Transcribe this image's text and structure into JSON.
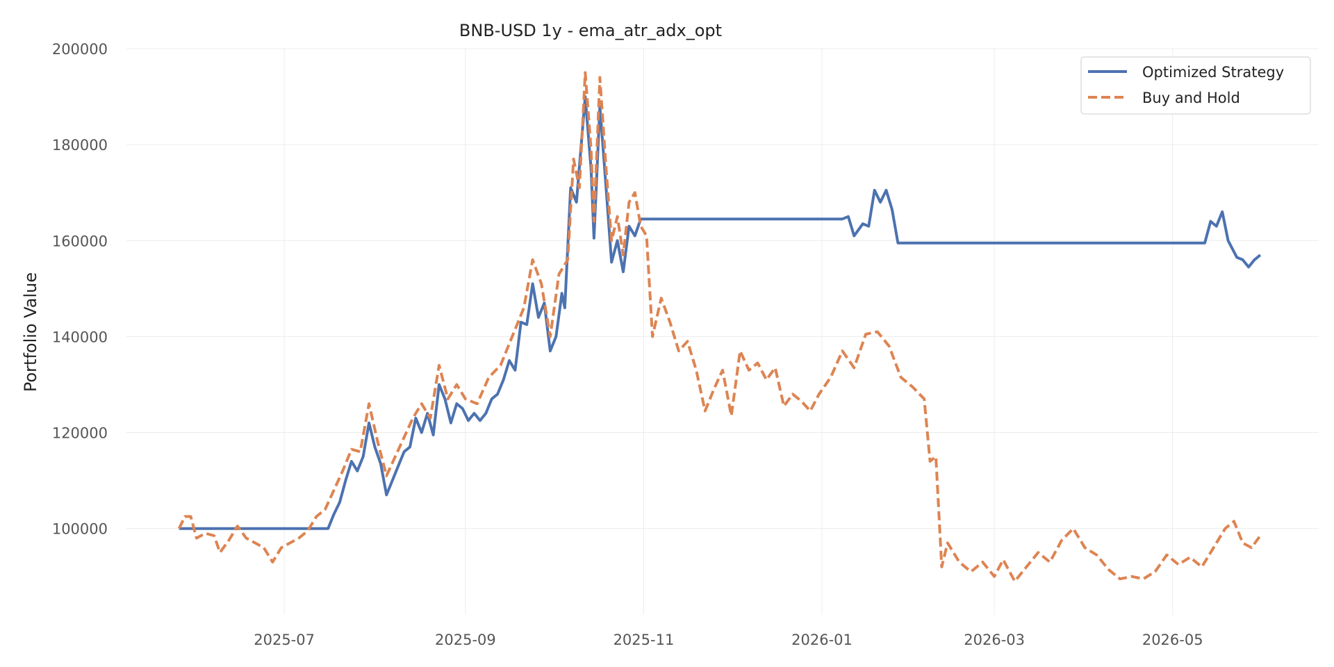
{
  "chart_data": {
    "type": "line",
    "title": "BNB-USD 1y - ema_atr_adx_opt",
    "xlabel": "",
    "ylabel": "Portfolio Value",
    "x_range": [
      "2025-05-08",
      "2026-06-20"
    ],
    "ylim": [
      82000,
      200000
    ],
    "y_ticks": [
      100000,
      120000,
      140000,
      160000,
      180000,
      200000
    ],
    "x_ticks": [
      {
        "date": "2025-07-01",
        "label": "2025-07"
      },
      {
        "date": "2025-09-01",
        "label": "2025-09"
      },
      {
        "date": "2025-11-01",
        "label": "2025-11"
      },
      {
        "date": "2026-01-01",
        "label": "2026-01"
      },
      {
        "date": "2026-03-01",
        "label": "2026-03"
      },
      {
        "date": "2026-05-01",
        "label": "2026-05"
      }
    ],
    "grid": true,
    "legend_position": "top-right",
    "series": [
      {
        "name": "Optimized Strategy",
        "color": "#4c72b0",
        "style": "solid",
        "points": [
          [
            "2025-05-26",
            100000
          ],
          [
            "2025-06-15",
            100000
          ],
          [
            "2025-07-05",
            100000
          ],
          [
            "2025-07-14",
            100000
          ],
          [
            "2025-07-16",
            100000
          ],
          [
            "2025-07-18",
            103000
          ],
          [
            "2025-07-20",
            105500
          ],
          [
            "2025-07-22",
            110000
          ],
          [
            "2025-07-24",
            114000
          ],
          [
            "2025-07-26",
            112000
          ],
          [
            "2025-07-28",
            115000
          ],
          [
            "2025-07-30",
            122000
          ],
          [
            "2025-08-01",
            117000
          ],
          [
            "2025-08-03",
            113500
          ],
          [
            "2025-08-05",
            107000
          ],
          [
            "2025-08-07",
            110000
          ],
          [
            "2025-08-09",
            113000
          ],
          [
            "2025-08-11",
            116000
          ],
          [
            "2025-08-13",
            117000
          ],
          [
            "2025-08-15",
            123000
          ],
          [
            "2025-08-17",
            120000
          ],
          [
            "2025-08-19",
            124000
          ],
          [
            "2025-08-21",
            119500
          ],
          [
            "2025-08-23",
            130000
          ],
          [
            "2025-08-25",
            127000
          ],
          [
            "2025-08-27",
            122000
          ],
          [
            "2025-08-29",
            126000
          ],
          [
            "2025-08-31",
            125000
          ],
          [
            "2025-09-02",
            122500
          ],
          [
            "2025-09-04",
            124000
          ],
          [
            "2025-09-06",
            122500
          ],
          [
            "2025-09-08",
            124000
          ],
          [
            "2025-09-10",
            127000
          ],
          [
            "2025-09-12",
            128000
          ],
          [
            "2025-09-14",
            131000
          ],
          [
            "2025-09-16",
            135000
          ],
          [
            "2025-09-18",
            133000
          ],
          [
            "2025-09-20",
            143000
          ],
          [
            "2025-09-22",
            142500
          ],
          [
            "2025-09-24",
            151000
          ],
          [
            "2025-09-26",
            144000
          ],
          [
            "2025-09-28",
            147000
          ],
          [
            "2025-09-30",
            137000
          ],
          [
            "2025-10-02",
            140000
          ],
          [
            "2025-10-04",
            149000
          ],
          [
            "2025-10-05",
            146000
          ],
          [
            "2025-10-07",
            171000
          ],
          [
            "2025-10-09",
            168000
          ],
          [
            "2025-10-12",
            190000
          ],
          [
            "2025-10-14",
            175000
          ],
          [
            "2025-10-15",
            160500
          ],
          [
            "2025-10-17",
            188000
          ],
          [
            "2025-10-19",
            172000
          ],
          [
            "2025-10-21",
            155500
          ],
          [
            "2025-10-23",
            160000
          ],
          [
            "2025-10-25",
            153500
          ],
          [
            "2025-10-27",
            163000
          ],
          [
            "2025-10-29",
            161000
          ],
          [
            "2025-10-31",
            164500
          ],
          [
            "2025-11-15",
            164500
          ],
          [
            "2025-12-15",
            164500
          ],
          [
            "2026-01-08",
            164500
          ],
          [
            "2026-01-10",
            165000
          ],
          [
            "2026-01-12",
            161000
          ],
          [
            "2026-01-15",
            163500
          ],
          [
            "2026-01-17",
            163000
          ],
          [
            "2026-01-19",
            170500
          ],
          [
            "2026-01-21",
            168000
          ],
          [
            "2026-01-23",
            170500
          ],
          [
            "2026-01-25",
            166500
          ],
          [
            "2026-01-27",
            159500
          ],
          [
            "2026-02-15",
            159500
          ],
          [
            "2026-03-15",
            159500
          ],
          [
            "2026-04-15",
            159500
          ],
          [
            "2026-05-12",
            159500
          ],
          [
            "2026-05-14",
            164000
          ],
          [
            "2026-05-16",
            163000
          ],
          [
            "2026-05-18",
            166000
          ],
          [
            "2026-05-20",
            160000
          ],
          [
            "2026-05-23",
            156500
          ],
          [
            "2026-05-25",
            156000
          ],
          [
            "2026-05-27",
            154500
          ],
          [
            "2026-05-29",
            156000
          ],
          [
            "2026-05-31",
            157000
          ]
        ]
      },
      {
        "name": "Buy and Hold",
        "color": "#dd8452",
        "style": "dashed",
        "points": [
          [
            "2025-05-26",
            100000
          ],
          [
            "2025-05-28",
            102500
          ],
          [
            "2025-05-30",
            102500
          ],
          [
            "2025-06-01",
            98000
          ],
          [
            "2025-06-04",
            99000
          ],
          [
            "2025-06-07",
            98500
          ],
          [
            "2025-06-09",
            95000
          ],
          [
            "2025-06-12",
            97500
          ],
          [
            "2025-06-15",
            100500
          ],
          [
            "2025-06-18",
            98000
          ],
          [
            "2025-06-21",
            97000
          ],
          [
            "2025-06-24",
            96000
          ],
          [
            "2025-06-27",
            93000
          ],
          [
            "2025-06-30",
            96000
          ],
          [
            "2025-07-03",
            97000
          ],
          [
            "2025-07-06",
            98000
          ],
          [
            "2025-07-09",
            99500
          ],
          [
            "2025-07-12",
            102500
          ],
          [
            "2025-07-15",
            104000
          ],
          [
            "2025-07-18",
            108000
          ],
          [
            "2025-07-21",
            112000
          ],
          [
            "2025-07-24",
            116500
          ],
          [
            "2025-07-27",
            116000
          ],
          [
            "2025-07-30",
            126000
          ],
          [
            "2025-08-02",
            118000
          ],
          [
            "2025-08-05",
            111000
          ],
          [
            "2025-08-08",
            115000
          ],
          [
            "2025-08-11",
            119000
          ],
          [
            "2025-08-14",
            123000
          ],
          [
            "2025-08-17",
            126000
          ],
          [
            "2025-08-20",
            123000
          ],
          [
            "2025-08-23",
            134000
          ],
          [
            "2025-08-26",
            127000
          ],
          [
            "2025-08-29",
            130000
          ],
          [
            "2025-09-01",
            127000
          ],
          [
            "2025-09-05",
            126000
          ],
          [
            "2025-09-09",
            131500
          ],
          [
            "2025-09-13",
            134000
          ],
          [
            "2025-09-17",
            140000
          ],
          [
            "2025-09-21",
            146000
          ],
          [
            "2025-09-24",
            156000
          ],
          [
            "2025-09-27",
            151000
          ],
          [
            "2025-09-30",
            140000
          ],
          [
            "2025-10-03",
            153000
          ],
          [
            "2025-10-06",
            156000
          ],
          [
            "2025-10-08",
            177000
          ],
          [
            "2025-10-10",
            171000
          ],
          [
            "2025-10-12",
            195000
          ],
          [
            "2025-10-14",
            179000
          ],
          [
            "2025-10-15",
            164000
          ],
          [
            "2025-10-17",
            194000
          ],
          [
            "2025-10-19",
            176000
          ],
          [
            "2025-10-21",
            160000
          ],
          [
            "2025-10-23",
            165000
          ],
          [
            "2025-10-25",
            157000
          ],
          [
            "2025-10-27",
            168000
          ],
          [
            "2025-10-29",
            170000
          ],
          [
            "2025-10-31",
            163000
          ],
          [
            "2025-11-02",
            161000
          ],
          [
            "2025-11-04",
            140000
          ],
          [
            "2025-11-07",
            148000
          ],
          [
            "2025-11-10",
            143000
          ],
          [
            "2025-11-13",
            137000
          ],
          [
            "2025-11-16",
            139000
          ],
          [
            "2025-11-19",
            133000
          ],
          [
            "2025-11-22",
            124500
          ],
          [
            "2025-11-25",
            129000
          ],
          [
            "2025-11-28",
            133000
          ],
          [
            "2025-12-01",
            123500
          ],
          [
            "2025-12-04",
            137000
          ],
          [
            "2025-12-07",
            133000
          ],
          [
            "2025-12-10",
            134500
          ],
          [
            "2025-12-13",
            131000
          ],
          [
            "2025-12-16",
            133500
          ],
          [
            "2025-12-19",
            125500
          ],
          [
            "2025-12-22",
            128000
          ],
          [
            "2025-12-25",
            126500
          ],
          [
            "2025-12-28",
            124500
          ],
          [
            "2025-12-31",
            128000
          ],
          [
            "2026-01-04",
            131500
          ],
          [
            "2026-01-08",
            137000
          ],
          [
            "2026-01-12",
            133500
          ],
          [
            "2026-01-16",
            140500
          ],
          [
            "2026-01-20",
            141000
          ],
          [
            "2026-01-24",
            138000
          ],
          [
            "2026-01-28",
            131500
          ],
          [
            "2026-02-01",
            129500
          ],
          [
            "2026-02-05",
            127000
          ],
          [
            "2026-02-07",
            114000
          ],
          [
            "2026-02-09",
            115000
          ],
          [
            "2026-02-11",
            92000
          ],
          [
            "2026-02-13",
            97000
          ],
          [
            "2026-02-17",
            93000
          ],
          [
            "2026-02-21",
            91000
          ],
          [
            "2026-02-25",
            93000
          ],
          [
            "2026-03-01",
            90000
          ],
          [
            "2026-03-04",
            93500
          ],
          [
            "2026-03-08",
            89000
          ],
          [
            "2026-03-12",
            92000
          ],
          [
            "2026-03-16",
            95000
          ],
          [
            "2026-03-20",
            93000
          ],
          [
            "2026-03-24",
            97500
          ],
          [
            "2026-03-28",
            100000
          ],
          [
            "2026-04-01",
            96000
          ],
          [
            "2026-04-05",
            94500
          ],
          [
            "2026-04-09",
            91500
          ],
          [
            "2026-04-13",
            89500
          ],
          [
            "2026-04-17",
            90000
          ],
          [
            "2026-04-21",
            89500
          ],
          [
            "2026-04-25",
            91000
          ],
          [
            "2026-04-29",
            94500
          ],
          [
            "2026-05-03",
            92500
          ],
          [
            "2026-05-07",
            94000
          ],
          [
            "2026-05-11",
            92000
          ],
          [
            "2026-05-15",
            96000
          ],
          [
            "2026-05-19",
            100000
          ],
          [
            "2026-05-22",
            101500
          ],
          [
            "2026-05-25",
            97000
          ],
          [
            "2026-05-28",
            96000
          ],
          [
            "2026-05-31",
            98500
          ]
        ]
      }
    ]
  }
}
